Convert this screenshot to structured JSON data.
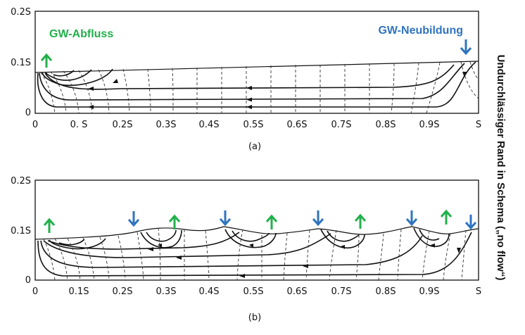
{
  "panel_a": {
    "y_ticks": [
      "0.2S",
      "0.1S",
      "0"
    ],
    "x_ticks": [
      "0",
      "0. S",
      "0.2S",
      "0.3S",
      "0.4S",
      "0.5S",
      "0.6S",
      "0.7S",
      "0.8S",
      "0.9S",
      "S"
    ],
    "caption": "(a)",
    "label_discharge": "GW-Abfluss",
    "label_recharge": "GW-Neubildung"
  },
  "panel_b": {
    "y_ticks": [
      "0.2S",
      "0.1S",
      "0"
    ],
    "x_ticks": [
      "0",
      "0.1S",
      "0.2S",
      "0.3S",
      "0.4S",
      "0.5S",
      "0.6S",
      "0.7S",
      "0.8S",
      "0.9S",
      "S"
    ],
    "caption": "(b)",
    "arrows": [
      "up",
      "down",
      "up",
      "down",
      "up",
      "down",
      "up",
      "down",
      "up",
      "down"
    ]
  },
  "side_label": "Undurchlässiger Rand in Schema („no flow“)",
  "colors": {
    "discharge": "#21b04b",
    "recharge": "#2f74c0",
    "lines": "#111111"
  }
}
